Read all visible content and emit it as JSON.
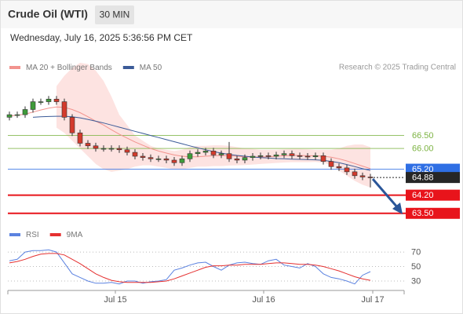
{
  "header": {
    "title": "Crude Oil (WTI)",
    "timeframe": "30 MIN",
    "datetime": "Wednesday, July 16, 2025 5:36:56 PM CET",
    "credit": "Research © 2025 Trading Central"
  },
  "chart_data": [
    {
      "type": "candlestick",
      "x": [
        0,
        1,
        2,
        3,
        4,
        5,
        6,
        7,
        8,
        9,
        10,
        11,
        12,
        13,
        14,
        15,
        16,
        17,
        18,
        19,
        20,
        21,
        22,
        23,
        24,
        25,
        26,
        27,
        28,
        29,
        30,
        31,
        32,
        33,
        34,
        35,
        36,
        37,
        38,
        39,
        40,
        41,
        42,
        43,
        44,
        45,
        46
      ],
      "open": [
        67.2,
        67.3,
        67.3,
        67.5,
        67.8,
        67.8,
        67.9,
        67.8,
        67.2,
        66.6,
        66.2,
        66.1,
        66.0,
        66.0,
        66.0,
        65.95,
        65.85,
        65.7,
        65.65,
        65.6,
        65.6,
        65.55,
        65.45,
        65.6,
        65.8,
        65.85,
        65.9,
        65.75,
        65.8,
        65.6,
        65.55,
        65.65,
        65.7,
        65.72,
        65.7,
        65.75,
        65.8,
        65.72,
        65.7,
        65.68,
        65.72,
        65.5,
        65.3,
        65.25,
        65.1,
        64.95,
        64.9
      ],
      "high": [
        67.42,
        67.42,
        67.62,
        67.92,
        67.92,
        68.02,
        68.02,
        67.92,
        67.32,
        66.72,
        66.32,
        66.22,
        66.12,
        66.12,
        66.12,
        66.07,
        65.97,
        65.82,
        65.77,
        65.72,
        65.72,
        65.67,
        65.72,
        65.92,
        65.97,
        66.02,
        66.02,
        65.92,
        66.25,
        65.72,
        65.77,
        65.82,
        65.84,
        65.84,
        65.87,
        65.92,
        65.92,
        65.84,
        65.82,
        65.84,
        65.84,
        65.62,
        65.42,
        65.37,
        65.22,
        65.07,
        65.02
      ],
      "low": [
        67.08,
        67.18,
        67.18,
        67.38,
        67.68,
        67.68,
        67.68,
        67.08,
        66.48,
        66.08,
        65.98,
        65.88,
        65.88,
        65.88,
        65.83,
        65.73,
        65.58,
        65.53,
        65.48,
        65.48,
        65.43,
        65.33,
        65.33,
        65.48,
        65.68,
        65.73,
        65.63,
        65.63,
        65.48,
        65.43,
        65.43,
        65.53,
        65.58,
        65.58,
        65.58,
        65.63,
        65.6,
        65.58,
        65.56,
        65.56,
        65.38,
        65.18,
        65.13,
        64.98,
        64.83,
        64.78,
        64.5
      ],
      "close": [
        67.3,
        67.3,
        67.5,
        67.8,
        67.8,
        67.9,
        67.8,
        67.2,
        66.6,
        66.2,
        66.1,
        66.0,
        66.0,
        66.0,
        65.95,
        65.85,
        65.7,
        65.65,
        65.6,
        65.6,
        65.55,
        65.45,
        65.6,
        65.8,
        65.85,
        65.9,
        65.75,
        65.8,
        65.6,
        65.55,
        65.65,
        65.7,
        65.72,
        65.7,
        65.75,
        65.8,
        65.72,
        65.7,
        65.68,
        65.72,
        65.5,
        65.3,
        65.25,
        65.1,
        64.95,
        64.9,
        64.88
      ],
      "up_color": "#3f9b3a",
      "down_color": "#d33a2c",
      "xlim": [
        -0.2,
        50.3
      ],
      "ylim": [
        63.1,
        69.45
      ],
      "series": [
        {
          "name": "MA 20 + Bollinger Bands",
          "color": "#f2938e",
          "values": [
            67.25,
            67.28,
            67.32,
            67.4,
            67.48,
            67.55,
            67.6,
            67.58,
            67.5,
            67.38,
            67.22,
            67.05,
            66.9,
            66.72,
            66.55,
            66.4,
            66.25,
            66.12,
            66.0,
            65.9,
            65.82,
            65.75,
            65.7,
            65.68,
            65.68,
            65.7,
            65.72,
            65.73,
            65.72,
            65.7,
            65.68,
            65.67,
            65.67,
            65.68,
            65.7,
            65.72,
            65.73,
            65.73,
            65.72,
            65.72,
            65.7,
            65.66,
            65.6,
            65.52,
            65.42,
            65.32,
            65.22
          ],
          "upper": [
            null,
            null,
            null,
            null,
            null,
            null,
            68.4,
            68.8,
            69.1,
            69.3,
            69.25,
            69.0,
            68.6,
            68.0,
            67.3,
            66.9,
            66.5,
            66.3,
            66.1,
            66.0,
            65.95,
            65.9,
            65.95,
            66.05,
            66.1,
            66.1,
            66.12,
            66.12,
            66.1,
            66.05,
            66.0,
            65.98,
            65.95,
            65.95,
            65.95,
            65.97,
            65.98,
            65.98,
            65.97,
            65.95,
            65.95,
            65.95,
            66.0,
            66.1,
            66.15,
            66.15,
            66.05
          ],
          "lower": [
            null,
            null,
            null,
            null,
            null,
            null,
            66.8,
            66.6,
            66.3,
            66.0,
            65.7,
            65.4,
            65.2,
            65.1,
            65.15,
            65.2,
            65.3,
            65.35,
            65.35,
            65.3,
            65.25,
            65.2,
            65.2,
            65.25,
            65.3,
            65.3,
            65.32,
            65.32,
            65.34,
            65.35,
            65.36,
            65.38,
            65.4,
            65.42,
            65.44,
            65.46,
            65.47,
            65.47,
            65.47,
            65.48,
            65.45,
            65.35,
            65.15,
            64.95,
            64.75,
            64.6,
            64.5
          ],
          "band_color": "#fde3e1"
        },
        {
          "name": "MA 50",
          "color": "#3b5b98",
          "values": [
            null,
            null,
            null,
            67.2,
            67.22,
            67.23,
            67.24,
            67.24,
            67.22,
            67.18,
            67.12,
            67.05,
            66.98,
            66.9,
            66.82,
            66.74,
            66.66,
            66.58,
            66.5,
            66.42,
            66.34,
            66.26,
            66.18,
            66.1,
            66.02,
            65.95,
            65.88,
            65.82,
            65.77,
            65.73,
            65.7,
            65.67,
            65.65,
            65.63,
            65.61,
            65.6,
            65.59,
            65.58,
            65.57,
            65.56,
            65.54,
            65.5,
            65.45,
            65.38,
            65.3,
            65.22,
            65.15
          ]
        }
      ],
      "levels": [
        {
          "value": 66.5,
          "label": "66.50",
          "color": "#7cb342",
          "line": "thin",
          "box": false
        },
        {
          "value": 66.0,
          "label": "66.00",
          "color": "#7cb342",
          "line": "thin",
          "box": false
        },
        {
          "value": 65.2,
          "label": "65.20",
          "color": "#2f6fe4",
          "line": "thin",
          "box": true
        },
        {
          "value": 64.88,
          "label": "64.88",
          "color": "#262626",
          "line": "dotted",
          "box": true
        },
        {
          "value": 64.2,
          "label": "64.20",
          "color": "#e8141b",
          "line": "thick",
          "box": true
        },
        {
          "value": 63.5,
          "label": "63.50",
          "color": "#e8141b",
          "line": "thick",
          "box": true
        }
      ]
    },
    {
      "type": "line",
      "x": [
        0,
        1,
        2,
        3,
        4,
        5,
        6,
        7,
        8,
        9,
        10,
        11,
        12,
        13,
        14,
        15,
        16,
        17,
        18,
        19,
        20,
        21,
        22,
        23,
        24,
        25,
        26,
        27,
        28,
        29,
        30,
        31,
        32,
        33,
        34,
        35,
        36,
        37,
        38,
        39,
        40,
        41,
        42,
        43,
        44,
        45,
        46
      ],
      "xlim": [
        -0.2,
        50.3
      ],
      "ylim": [
        17,
        82
      ],
      "yticks": [
        70,
        50,
        30
      ],
      "xticks": [
        {
          "value": 13.5,
          "label": "Jul 15"
        },
        {
          "value": 32.4,
          "label": "Jul 16"
        },
        {
          "value": 46.3,
          "label": "Jul 17"
        }
      ],
      "series": [
        {
          "name": "RSI",
          "color": "#5b82e0",
          "values": [
            58,
            60,
            70,
            72,
            72,
            73,
            70,
            55,
            40,
            35,
            30,
            27,
            27,
            28,
            26,
            30,
            30,
            27,
            29,
            30,
            32,
            45,
            48,
            52,
            55,
            56,
            50,
            45,
            52,
            55,
            56,
            54,
            53,
            58,
            60,
            52,
            50,
            48,
            54,
            50,
            40,
            35,
            33,
            30,
            26,
            38,
            43
          ]
        },
        {
          "name": "9MA",
          "color": "#e53030",
          "values": [
            55,
            57,
            60,
            64,
            67,
            68,
            68,
            66,
            60,
            54,
            47,
            40,
            35,
            31,
            29,
            28,
            28,
            28,
            28,
            29,
            30,
            33,
            37,
            41,
            45,
            49,
            51,
            51,
            52,
            52,
            53,
            53,
            53,
            54,
            55,
            55,
            54,
            53,
            53,
            52,
            50,
            47,
            44,
            40,
            36,
            33,
            31
          ]
        }
      ]
    }
  ]
}
